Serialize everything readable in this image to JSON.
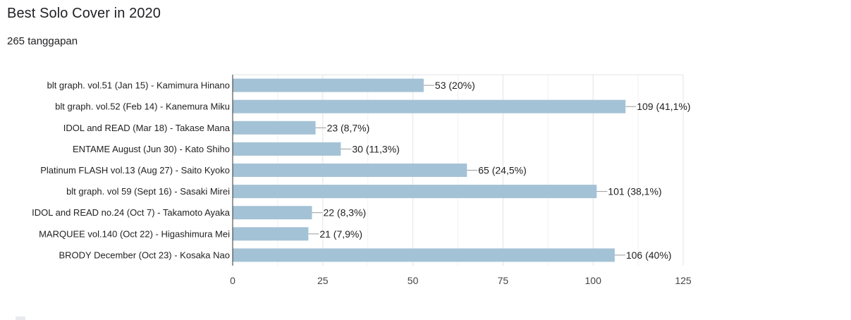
{
  "form": {
    "title": "Best Solo Cover in 2020",
    "response_count": "265 tanggapan"
  },
  "chart_data": {
    "type": "bar",
    "orientation": "horizontal",
    "categories": [
      "blt graph. vol.51 (Jan 15) - Kamimura Hinano",
      "blt graph. vol.52 (Feb 14) - Kanemura Miku",
      "IDOL and READ (Mar 18) - Takase Mana",
      "ENTAME August (Jun 30) - Kato Shiho",
      "Platinum FLASH vol.13 (Aug 27) - Saito Kyoko",
      "blt graph. vol 59 (Sept 16) - Sasaki Mirei",
      "IDOL and READ no.24 (Oct 7) - Takamoto Ayaka",
      "MARQUEE vol.140 (Oct 22) - Higashimura Mei",
      "BRODY December (Oct 23) - Kosaka Nao"
    ],
    "values": [
      53,
      109,
      23,
      30,
      65,
      101,
      22,
      21,
      106
    ],
    "data_labels": [
      "53 (20%)",
      "109 (41,1%)",
      "23 (8,7%)",
      "30 (11,3%)",
      "65 (24,5%)",
      "101 (38,1%)",
      "22 (8,3%)",
      "21 (7,9%)",
      "106 (40%)"
    ],
    "xlim": [
      0,
      125
    ],
    "xticks": [
      "0",
      "25",
      "50",
      "75",
      "100",
      "125"
    ],
    "grid": true,
    "bar_color": "#a4c2d6"
  }
}
